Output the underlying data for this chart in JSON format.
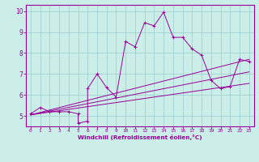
{
  "xlabel": "Windchill (Refroidissement éolien,°C)",
  "xlim": [
    -0.5,
    23.5
  ],
  "ylim": [
    4.5,
    10.3
  ],
  "xticks": [
    0,
    1,
    2,
    3,
    4,
    5,
    6,
    7,
    8,
    9,
    10,
    11,
    12,
    13,
    14,
    15,
    16,
    17,
    18,
    19,
    20,
    21,
    22,
    23
  ],
  "yticks": [
    5,
    6,
    7,
    8,
    9,
    10
  ],
  "bg_color": "#cceee8",
  "line_color": "#990099",
  "grid_color": "#99cccc",
  "scatter_x": [
    0,
    1,
    2,
    3,
    4,
    5,
    5,
    6,
    6,
    7,
    8,
    9,
    10,
    11,
    12,
    13,
    14,
    15,
    16,
    17,
    18,
    19,
    20,
    21,
    22,
    23
  ],
  "scatter_y": [
    5.1,
    5.4,
    5.2,
    5.2,
    5.2,
    5.1,
    4.65,
    4.75,
    6.3,
    7.0,
    6.35,
    5.9,
    8.55,
    8.3,
    9.45,
    9.3,
    9.95,
    8.75,
    8.75,
    8.2,
    7.9,
    6.7,
    6.3,
    6.4,
    7.7,
    7.6
  ],
  "line1_x": [
    0,
    23
  ],
  "line1_y": [
    5.05,
    6.55
  ],
  "line2_x": [
    0,
    23
  ],
  "line2_y": [
    5.05,
    7.1
  ],
  "line3_x": [
    0,
    23
  ],
  "line3_y": [
    5.05,
    7.7
  ]
}
